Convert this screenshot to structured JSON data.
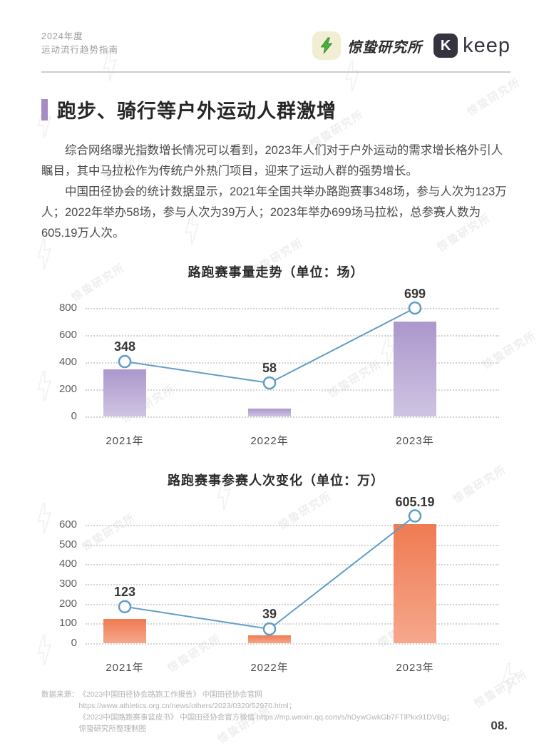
{
  "header": {
    "edition": "2024年度",
    "guide": "运动流行趋势指南",
    "brand1": "惊蛰研究所",
    "brand2_k": "K",
    "brand2": "keep"
  },
  "section": {
    "title": "跑步、骑行等户外运动人群激增",
    "paragraphs": [
      "综合网络曝光指数增长情况可以看到，2023年人们对于户外运动的需求增长格外引人瞩目，其中马拉松作为传统户外热门项目，迎来了运动人群的强势增长。",
      "中国田径协会的统计数据显示，2021年全国共举办路跑赛事348场，参与人次为123万人；2022年举办58场，参与人次为39万人；2023年举办699场马拉松，总参赛人数为605.19万人次。"
    ]
  },
  "chart_data": [
    {
      "type": "bar",
      "title": "路跑赛事量走势（单位：场）",
      "categories": [
        "2021年",
        "2022年",
        "2023年"
      ],
      "values": [
        348,
        58,
        699
      ],
      "labels": [
        "348",
        "58",
        "699"
      ],
      "line_overlay": true,
      "line_marker_levels": [
        405,
        247,
        800
      ],
      "ylim": [
        0,
        800
      ],
      "ytick_step": 200,
      "grid": "dotted horizontal",
      "legend": "none",
      "bar_color_top": "#ab97cc",
      "bar_color_bottom": "#cfc4e2",
      "line_color": "#5f9dc8"
    },
    {
      "type": "bar",
      "title": "路跑赛事参赛人次变化（单位：万）",
      "categories": [
        "2021年",
        "2022年",
        "2023年"
      ],
      "values": [
        123,
        39,
        605.19
      ],
      "labels": [
        "123",
        "39",
        "605.19"
      ],
      "line_overlay": true,
      "line_marker_levels": [
        185,
        72,
        645
      ],
      "ylim": [
        0,
        600
      ],
      "ytick_step": 100,
      "grid": "dotted horizontal",
      "legend": "none",
      "bar_color_top": "#ef7b52",
      "bar_color_bottom": "#f6a78c",
      "line_color": "#5f9dc8"
    }
  ],
  "footer": {
    "source_label": "数据来源：",
    "source_lines": [
      "《2023中国田径协会路跑工作报告》 中国田径协会官网",
      "https://www.athletics.org.cn/news/others/2023/0320/52970.html；",
      "《2023中国路跑赛事蓝皮书》 中国田径协会官方微信 https://mp.weixin.qq.com/s/hDywGwkGb7FTlPkx91DVBg；",
      "惊蛰研究所整理制图"
    ],
    "page_number": "08."
  },
  "watermark": {
    "text": "惊蛰研究所"
  }
}
